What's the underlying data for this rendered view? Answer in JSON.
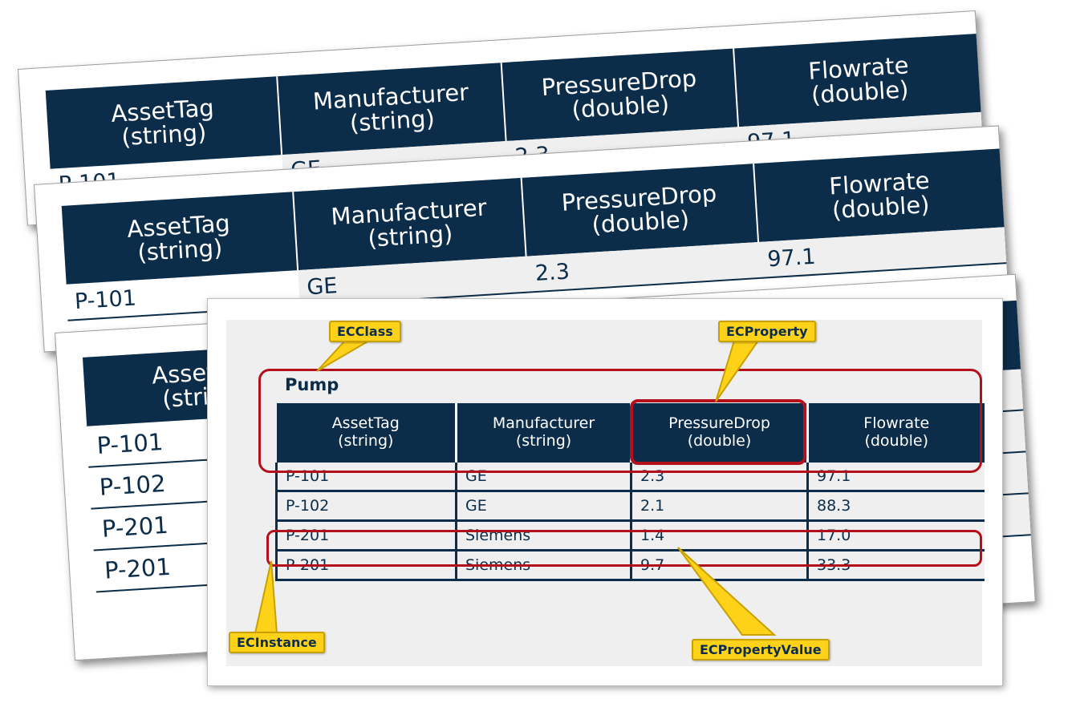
{
  "columns": [
    {
      "name": "AssetTag",
      "type": "(string)"
    },
    {
      "name": "Manufacturer",
      "type": "(string)"
    },
    {
      "name": "PressureDrop",
      "type": "(double)"
    },
    {
      "name": "Flowrate",
      "type": "(double)"
    }
  ],
  "class_name": "Pump",
  "rows": [
    [
      "P-101",
      "GE",
      "2.3",
      "97.1"
    ],
    [
      "P-102",
      "GE",
      "2.1",
      "88.3"
    ],
    [
      "P-201",
      "Siemens",
      "1.4",
      "17.0"
    ],
    [
      "P-201",
      "Siemens",
      "9.7",
      "33.3"
    ]
  ],
  "callouts": {
    "ecclass": "ECClass",
    "ecproperty": "ECProperty",
    "ecinstance": "ECInstance",
    "ecpropertyvalue": "ECPropertyValue"
  },
  "colors": {
    "header": "#0c2d4a",
    "highlight": "#b4101c",
    "callout": "#ffd21a"
  }
}
